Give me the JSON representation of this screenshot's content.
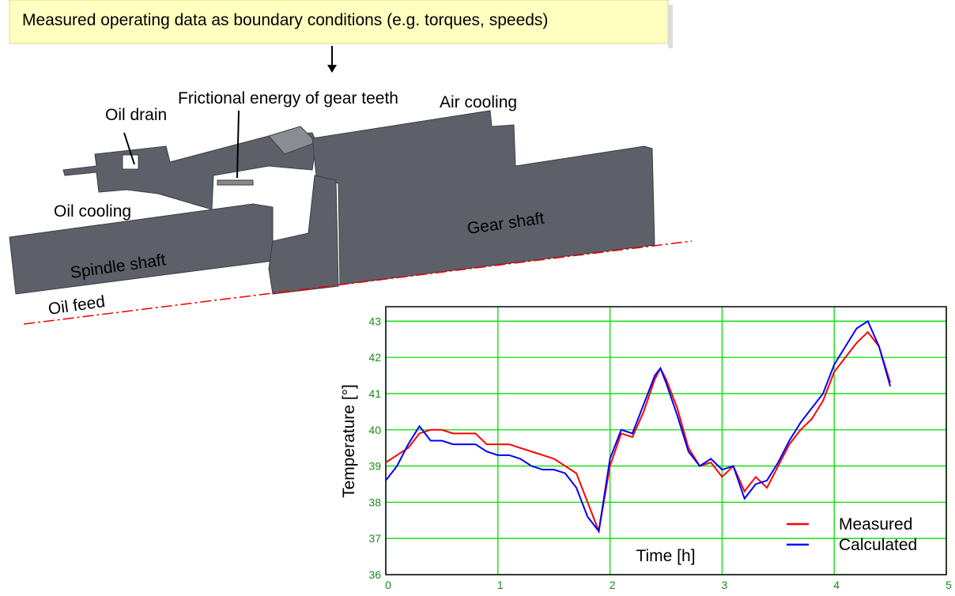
{
  "callout": "Measured operating data as boundary conditions (e.g. torques, speeds)",
  "labels": {
    "friction": "Frictional energy of gear teeth",
    "air_cooling": "Air cooling",
    "oil_drain": "Oil drain",
    "oil_cooling": "Oil cooling",
    "gear_shaft": "Gear shaft",
    "spindle_shaft": "Spindle shaft",
    "oil_feed": "Oil feed"
  },
  "chart_data": {
    "type": "line",
    "x_label": "Time [h]",
    "y_label": "Temperature [°]",
    "x": [
      0,
      0.1,
      0.2,
      0.3,
      0.4,
      0.5,
      0.6,
      0.7,
      0.8,
      0.9,
      1.0,
      1.1,
      1.2,
      1.3,
      1.4,
      1.5,
      1.6,
      1.7,
      1.8,
      1.9,
      2.0,
      2.1,
      2.2,
      2.3,
      2.4,
      2.45,
      2.5,
      2.6,
      2.7,
      2.8,
      2.9,
      3.0,
      3.1,
      3.2,
      3.3,
      3.4,
      3.5,
      3.6,
      3.7,
      3.8,
      3.9,
      4.0,
      4.1,
      4.2,
      4.3,
      4.4,
      4.5
    ],
    "series": [
      {
        "name": "Measured",
        "color": "#ff0000",
        "values": [
          39.1,
          39.3,
          39.5,
          39.9,
          40.0,
          40.0,
          39.9,
          39.9,
          39.9,
          39.6,
          39.6,
          39.6,
          39.5,
          39.4,
          39.3,
          39.2,
          39.0,
          38.8,
          38.0,
          37.2,
          39.0,
          39.9,
          39.8,
          40.5,
          41.4,
          41.7,
          41.4,
          40.6,
          39.5,
          39.0,
          39.1,
          38.7,
          39.0,
          38.3,
          38.7,
          38.4,
          39.0,
          39.6,
          40.0,
          40.3,
          40.8,
          41.6,
          42.0,
          42.4,
          42.7,
          42.3,
          41.3
        ]
      },
      {
        "name": "Calculated",
        "color": "#0000ff",
        "values": [
          38.6,
          39.0,
          39.6,
          40.1,
          39.7,
          39.7,
          39.6,
          39.6,
          39.6,
          39.4,
          39.3,
          39.3,
          39.2,
          39.0,
          38.9,
          38.9,
          38.8,
          38.4,
          37.6,
          37.2,
          39.2,
          40.0,
          39.9,
          40.7,
          41.5,
          41.7,
          41.3,
          40.4,
          39.4,
          39.0,
          39.2,
          38.9,
          39.0,
          38.1,
          38.5,
          38.6,
          39.1,
          39.7,
          40.2,
          40.6,
          41.0,
          41.8,
          42.3,
          42.8,
          43.0,
          42.3,
          41.2
        ]
      }
    ],
    "xlim": [
      0,
      5
    ],
    "xticks": [
      0,
      1,
      2,
      3,
      4,
      5
    ],
    "ylim": [
      36,
      43.4
    ],
    "yticks": [
      36,
      37,
      38,
      39,
      40,
      41,
      42,
      43
    ],
    "grid": true,
    "grid_color": "#00e000",
    "legend": "lower right"
  }
}
